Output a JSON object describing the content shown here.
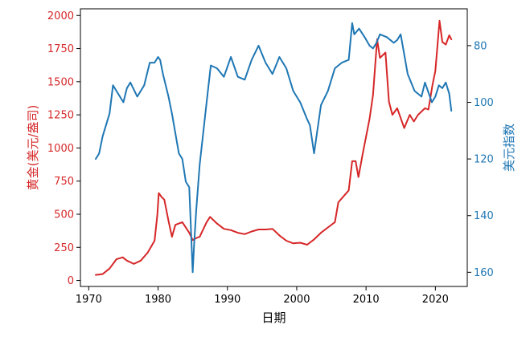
{
  "chart_data": {
    "type": "line",
    "xlabel": "日期",
    "ylabel_left": "黄金(美元/盎司)",
    "ylabel_right": "美元指数",
    "xlim": [
      1968.8,
      2024.6
    ],
    "ylim_left": [
      -45,
      2050
    ],
    "ylim_right": [
      165,
      67
    ],
    "right_axis_inverted": true,
    "x_ticks": [
      1970,
      1980,
      1990,
      2000,
      2010,
      2020
    ],
    "y_ticks_left": [
      0,
      250,
      500,
      750,
      1000,
      1250,
      1500,
      1750,
      2000
    ],
    "y_ticks_right": [
      80,
      100,
      120,
      140,
      160
    ],
    "grid": false,
    "legend": "none",
    "colors": {
      "left": "#d62728",
      "right": "#1f77b4"
    },
    "series": [
      {
        "axis": "left",
        "color": "#d62728",
        "x": [
          1971.0,
          1972.0,
          1973.0,
          1974.0,
          1974.9,
          1975.5,
          1976.5,
          1977.5,
          1978.5,
          1979.5,
          1979.9,
          1980.1,
          1980.5,
          1980.9,
          1981.5,
          1982.0,
          1982.5,
          1983.0,
          1983.5,
          1984.5,
          1985.0,
          1985.5,
          1986.0,
          1987.0,
          1987.5,
          1988.5,
          1989.5,
          1990.5,
          1991.5,
          1992.5,
          1993.5,
          1994.5,
          1995.5,
          1996.5,
          1997.5,
          1998.5,
          1999.5,
          2000.5,
          2001.5,
          2002.5,
          2003.5,
          2004.5,
          2005.5,
          2006.0,
          2006.5,
          2007.5,
          2008.0,
          2008.5,
          2008.9,
          2009.5,
          2010.5,
          2011.0,
          2011.6,
          2012.0,
          2012.8,
          2013.3,
          2013.8,
          2014.5,
          2015.5,
          2016.3,
          2016.9,
          2017.5,
          2018.5,
          2019.0,
          2019.6,
          2020.0,
          2020.6,
          2021.0,
          2021.5,
          2022.0,
          2022.3
        ],
        "y": [
          42,
          48,
          90,
          160,
          175,
          150,
          125,
          150,
          210,
          300,
          500,
          660,
          630,
          610,
          450,
          330,
          420,
          430,
          440,
          360,
          305,
          320,
          330,
          440,
          480,
          430,
          390,
          380,
          360,
          350,
          370,
          385,
          385,
          390,
          340,
          300,
          280,
          285,
          270,
          310,
          360,
          400,
          440,
          590,
          620,
          680,
          900,
          900,
          780,
          950,
          1220,
          1400,
          1820,
          1680,
          1720,
          1350,
          1250,
          1300,
          1150,
          1250,
          1200,
          1250,
          1300,
          1290,
          1480,
          1580,
          1960,
          1800,
          1780,
          1850,
          1820
        ]
      },
      {
        "axis": "right",
        "color": "#1f77b4",
        "x": [
          1971.0,
          1971.5,
          1972.0,
          1973.0,
          1973.5,
          1974.0,
          1974.5,
          1975.0,
          1975.5,
          1976.0,
          1977.0,
          1978.0,
          1978.8,
          1979.5,
          1980.0,
          1980.3,
          1980.7,
          1981.5,
          1982.0,
          1983.0,
          1983.5,
          1984.0,
          1984.5,
          1985.0,
          1985.2,
          1985.5,
          1986.0,
          1987.0,
          1987.6,
          1988.5,
          1989.5,
          1990.5,
          1991.5,
          1992.5,
          1993.5,
          1994.5,
          1995.5,
          1996.5,
          1997.5,
          1998.5,
          1999.5,
          2000.5,
          2001.5,
          2001.9,
          2002.5,
          2003.5,
          2004.5,
          2005.5,
          2006.5,
          2007.5,
          2008.0,
          2008.3,
          2009.0,
          2009.8,
          2010.5,
          2011.0,
          2011.5,
          2012.0,
          2013.0,
          2014.0,
          2014.5,
          2015.0,
          2016.0,
          2017.0,
          2018.0,
          2018.5,
          2019.5,
          2020.0,
          2020.5,
          2021.0,
          2021.5,
          2022.0,
          2022.3
        ],
        "y": [
          120,
          118,
          112,
          104,
          94,
          96,
          98,
          100,
          95,
          93,
          98,
          94,
          86,
          86,
          84,
          85,
          90,
          98,
          104,
          118,
          120,
          128,
          130,
          160,
          150,
          138,
          122,
          100,
          87,
          88,
          91,
          84,
          91,
          92,
          85,
          80,
          86,
          90,
          84,
          88,
          96,
          100,
          106,
          108,
          118,
          101,
          96,
          88,
          86,
          85,
          72,
          76,
          74,
          77,
          80,
          81,
          79,
          76,
          77,
          79,
          78,
          76,
          90,
          96,
          98,
          93,
          100,
          98,
          94,
          95,
          93,
          97,
          103
        ]
      }
    ]
  }
}
